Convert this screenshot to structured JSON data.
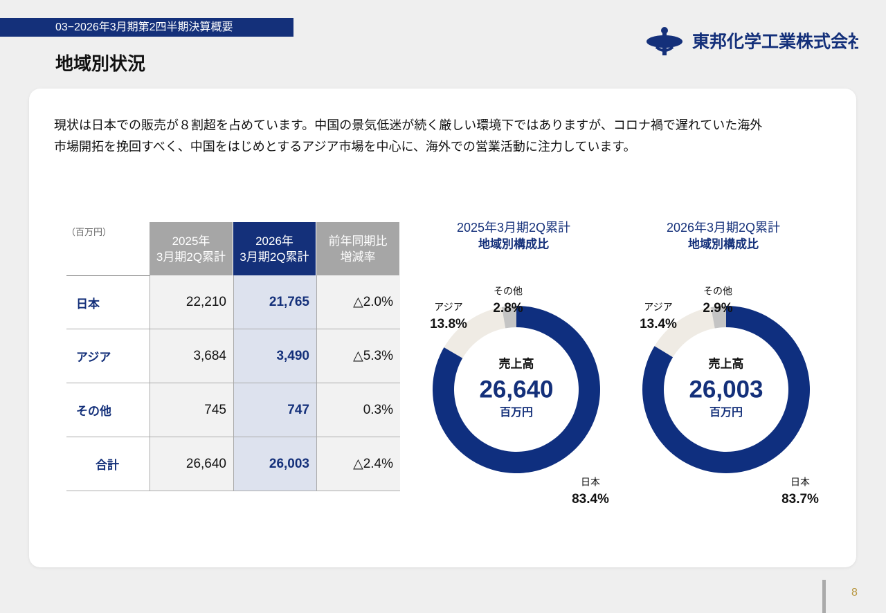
{
  "header": {
    "section": "03−2026年3月期第2四半期決算概要",
    "title": "地域別状況",
    "company": "東邦化学工業株式会社"
  },
  "body": {
    "lines": [
      "現状は日本での販売が８割超を占めています。中国の景気低迷が続く厳しい環境下ではありますが、コロナ禍で遅れていた海外",
      "市場開拓を挽回すべく、中国をはじめとするアジア市場を中心に、海外での営業活動に注力しています。"
    ]
  },
  "table": {
    "unit": "（百万円）",
    "columns": [
      "2025年\n3月期2Q累計",
      "2026年\n3月期2Q累計",
      "前年同期比\n増減率"
    ],
    "rows": [
      [
        "日本",
        "22,210",
        "21,765",
        "△2.0%"
      ],
      [
        "アジア",
        "3,684",
        "3,490",
        "△5.3%"
      ],
      [
        "その他",
        "745",
        "747",
        "0.3%"
      ],
      [
        "合計",
        "26,640",
        "26,003",
        "△2.4%"
      ]
    ]
  },
  "chart_data": [
    {
      "type": "donut",
      "title": "2025年3月期2Q累計",
      "subtitle": "地域別構成比",
      "categories": [
        "日本",
        "アジア",
        "その他"
      ],
      "values": [
        83.4,
        13.8,
        2.8
      ],
      "value_labels": [
        "83.4%",
        "13.8%",
        "2.8%"
      ],
      "colors": [
        "#0f2f7f",
        "#efebe4",
        "#c4c4c4"
      ],
      "center_label": "売上高",
      "center_value": "26,640",
      "center_unit": "百万円"
    },
    {
      "type": "donut",
      "title": "2026年3月期2Q累計",
      "subtitle": "地域別構成比",
      "categories": [
        "日本",
        "アジア",
        "その他"
      ],
      "values": [
        83.7,
        13.4,
        2.9
      ],
      "value_labels": [
        "83.7%",
        "13.4%",
        "2.9%"
      ],
      "colors": [
        "#0f2f7f",
        "#efebe4",
        "#c4c4c4"
      ],
      "center_label": "売上高",
      "center_value": "26,003",
      "center_unit": "百万円"
    }
  ],
  "footer": {
    "page": "8"
  }
}
